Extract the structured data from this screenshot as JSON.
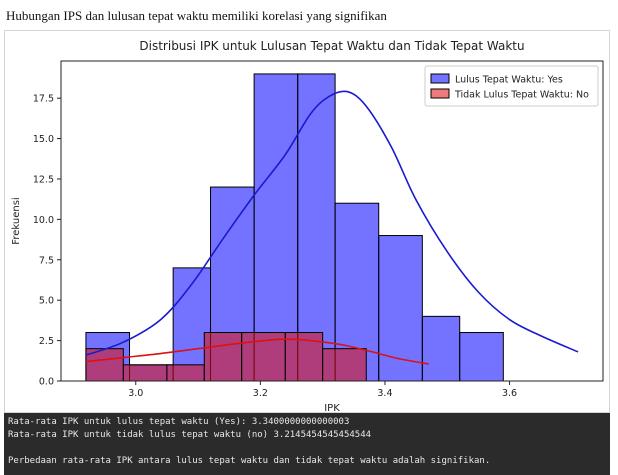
{
  "page": {
    "heading": "Hubungan IPS dan lulusan tepat waktu memiliki korelasi yang signifikan"
  },
  "chart_data": {
    "type": "histogram",
    "title": "Distribusi IPK untuk Lulusan Tepat Waktu dan Tidak Tepat Waktu",
    "xlabel": "IPK",
    "ylabel": "Frekuensi",
    "xlim": [
      2.88,
      3.75
    ],
    "ylim": [
      0,
      19.8
    ],
    "x_ticks": [
      3.0,
      3.2,
      3.4,
      3.6
    ],
    "x_tick_labels": [
      "3.0",
      "3.2",
      "3.4",
      "3.6"
    ],
    "y_ticks": [
      0,
      2.5,
      5,
      7.5,
      10,
      12.5,
      15,
      17.5
    ],
    "y_tick_labels": [
      "0.0",
      "2.5",
      "5.0",
      "7.5",
      "10.0",
      "12.5",
      "15.0",
      "17.5"
    ],
    "grid": false,
    "legend_position": "top-right",
    "series": [
      {
        "name": "Lulus Tepat Waktu: Yes",
        "color": "#0000ff",
        "fill_opacity": 0.55,
        "kde_color": "#1a1ad0",
        "bins": [
          {
            "x0": 2.92,
            "x1": 2.99,
            "count": 3
          },
          {
            "x0": 2.99,
            "x1": 3.06,
            "count": 1
          },
          {
            "x0": 3.06,
            "x1": 3.12,
            "count": 7
          },
          {
            "x0": 3.12,
            "x1": 3.19,
            "count": 12
          },
          {
            "x0": 3.19,
            "x1": 3.26,
            "count": 19
          },
          {
            "x0": 3.26,
            "x1": 3.32,
            "count": 19
          },
          {
            "x0": 3.32,
            "x1": 3.39,
            "count": 11
          },
          {
            "x0": 3.39,
            "x1": 3.46,
            "count": 9
          },
          {
            "x0": 3.46,
            "x1": 3.52,
            "count": 4
          },
          {
            "x0": 3.52,
            "x1": 3.59,
            "count": 3
          }
        ],
        "kde": [
          [
            2.92,
            1.6
          ],
          [
            2.98,
            2.4
          ],
          [
            3.04,
            3.8
          ],
          [
            3.09,
            6.0
          ],
          [
            3.14,
            8.8
          ],
          [
            3.19,
            11.5
          ],
          [
            3.24,
            14.0
          ],
          [
            3.28,
            16.5
          ],
          [
            3.31,
            17.6
          ],
          [
            3.34,
            17.9
          ],
          [
            3.37,
            17.0
          ],
          [
            3.41,
            14.5
          ],
          [
            3.45,
            11.2
          ],
          [
            3.5,
            8.0
          ],
          [
            3.55,
            5.5
          ],
          [
            3.6,
            3.8
          ],
          [
            3.65,
            2.8
          ],
          [
            3.71,
            1.8
          ]
        ]
      },
      {
        "name": "Tidak Lulus Tepat Waktu: No",
        "color": "#e01010",
        "fill_opacity": 0.55,
        "kde_color": "#dd1111",
        "bins": [
          {
            "x0": 2.92,
            "x1": 2.98,
            "count": 2
          },
          {
            "x0": 2.98,
            "x1": 3.05,
            "count": 1
          },
          {
            "x0": 3.05,
            "x1": 3.11,
            "count": 1
          },
          {
            "x0": 3.11,
            "x1": 3.17,
            "count": 3
          },
          {
            "x0": 3.17,
            "x1": 3.24,
            "count": 3
          },
          {
            "x0": 3.24,
            "x1": 3.3,
            "count": 3
          },
          {
            "x0": 3.3,
            "x1": 3.37,
            "count": 2
          }
        ],
        "kde": [
          [
            2.92,
            1.2
          ],
          [
            2.98,
            1.45
          ],
          [
            3.04,
            1.7
          ],
          [
            3.1,
            2.0
          ],
          [
            3.16,
            2.3
          ],
          [
            3.22,
            2.55
          ],
          [
            3.25,
            2.58
          ],
          [
            3.28,
            2.5
          ],
          [
            3.33,
            2.25
          ],
          [
            3.38,
            1.8
          ],
          [
            3.42,
            1.4
          ],
          [
            3.47,
            1.05
          ]
        ]
      }
    ]
  },
  "console": {
    "lines": [
      "Rata-rata IPK untuk lulus tepat waktu (Yes): 3.3400000000000003",
      "Rata-rata IPK untuk tidak lulus tepat waktu (no) 3.2145454545454544",
      "",
      "Perbedaan rata-rata IPK antara lulus tepat waktu dan tidak tepat waktu adalah signifikan."
    ]
  }
}
